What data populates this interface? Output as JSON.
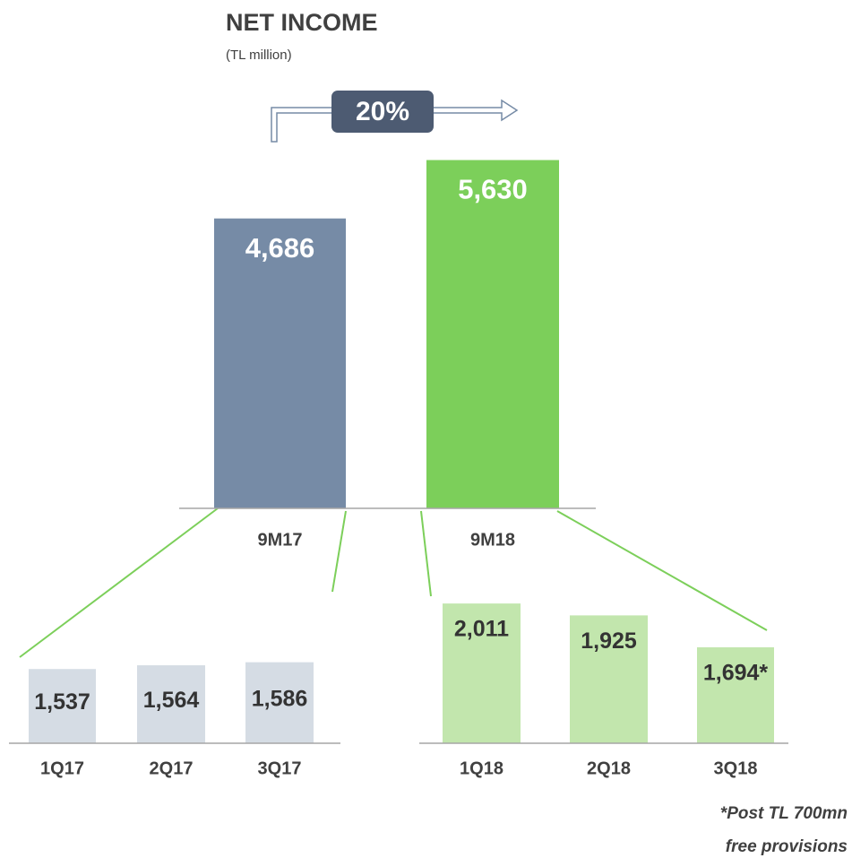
{
  "chart_data": [
    {
      "type": "bar",
      "title": "NET INCOME",
      "subtitle": "(TL million)",
      "annotation": "20%",
      "categories": [
        "9M17",
        "9M18"
      ],
      "values": [
        4686,
        5630
      ],
      "value_labels": [
        "4,686",
        "5,630"
      ],
      "colors": [
        "#768ba6",
        "#7ccf5a"
      ],
      "ylim": [
        0,
        6000
      ]
    },
    {
      "type": "bar",
      "categories": [
        "1Q17",
        "2Q17",
        "3Q17"
      ],
      "values": [
        1537,
        1564,
        1586
      ],
      "value_labels": [
        "1,537",
        "1,564",
        "1,586"
      ],
      "colors": [
        "#d5dce4",
        "#d5dce4",
        "#d5dce4"
      ],
      "ylim": [
        1000,
        2200
      ]
    },
    {
      "type": "bar",
      "categories": [
        "1Q18",
        "2Q18",
        "3Q18"
      ],
      "values": [
        2011,
        1925,
        1694
      ],
      "value_labels": [
        "2,011",
        "1,925",
        "1,694*"
      ],
      "colors": [
        "#c2e6ad",
        "#c2e6ad",
        "#c2e6ad"
      ],
      "ylim": [
        1000,
        2200
      ],
      "footnote": [
        "*Post TL 700mn",
        "free provisions"
      ]
    }
  ]
}
